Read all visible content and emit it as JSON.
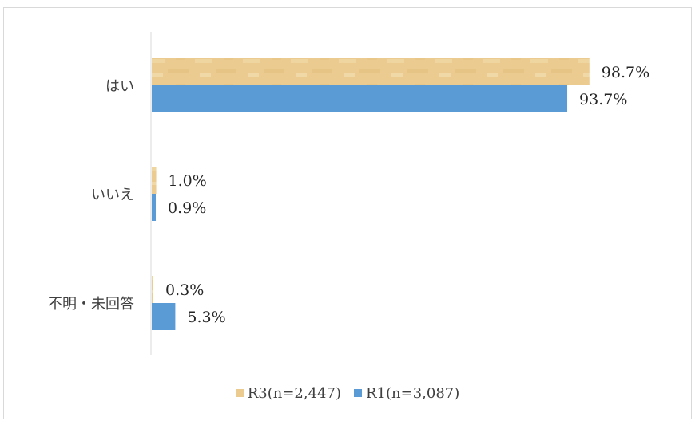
{
  "chart_data": {
    "type": "bar",
    "orientation": "horizontal",
    "categories": [
      "はい",
      "いいえ",
      "不明・未回答"
    ],
    "series": [
      {
        "name": "R3(n=2,447)",
        "values": [
          98.7,
          1.0,
          0.3
        ],
        "labels": [
          "98.7%",
          "1.0%",
          "0.3%"
        ],
        "color": "#EBCB8F"
      },
      {
        "name": "R1(n=3,087)",
        "values": [
          93.7,
          0.9,
          5.3
        ],
        "labels": [
          "93.7%",
          "0.9%",
          "5.3%"
        ],
        "color": "#5B9BD5"
      }
    ],
    "xlim": [
      0,
      100
    ],
    "grid": false,
    "legend_position": "bottom"
  }
}
